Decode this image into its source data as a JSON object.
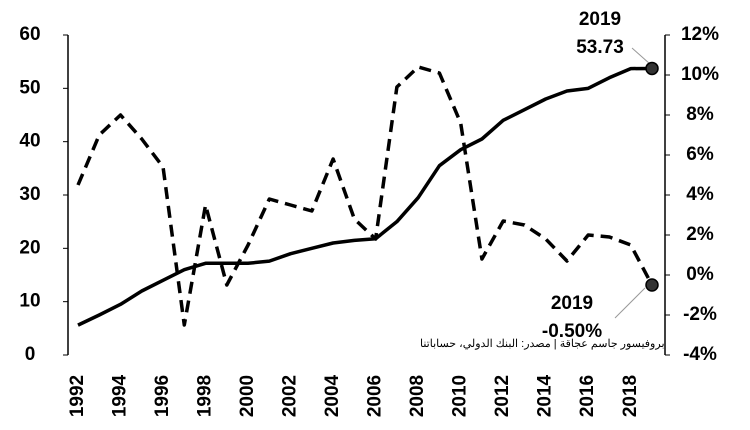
{
  "chart_data": {
    "type": "line",
    "categories": [
      "1992",
      null,
      "1994",
      null,
      "1996",
      null,
      "1998",
      null,
      "2000",
      null,
      "2002",
      null,
      "2004",
      null,
      "2006",
      null,
      "2008",
      null,
      "2010",
      null,
      "2012",
      null,
      "2014",
      null,
      "2016",
      null,
      "2018",
      null
    ],
    "series": [
      {
        "color": "#000000",
        "style": "solid",
        "values": [
          5.6,
          7.5,
          9.5,
          12,
          14,
          16,
          17.2,
          17.2,
          17.2,
          17.6,
          19,
          20,
          21,
          21.5,
          21.8,
          25,
          29.5,
          35.5,
          38.5,
          40.5,
          44,
          46,
          48,
          49.5,
          50,
          52,
          53.7,
          53.73
        ]
      },
      {
        "color": "#000000",
        "style": "dashed",
        "axis": "y2",
        "values": [
          4.5,
          7,
          8,
          6.8,
          5.4,
          -2.5,
          3.5,
          -0.5,
          1.5,
          3.8,
          3.5,
          3.2,
          5.8,
          2.8,
          1.8,
          9.4,
          10.4,
          10.1,
          7.6,
          0.8,
          2.7,
          2.5,
          1.8,
          0.7,
          2,
          1.9,
          1.5,
          -0.5
        ]
      }
    ],
    "ylim": [
      0,
      60
    ],
    "yticks": [
      0,
      10,
      20,
      30,
      40,
      50,
      60
    ],
    "y2lim": [
      -4,
      12
    ],
    "y2ticks": [
      {
        "value": -4,
        "label": "-4%"
      },
      {
        "value": -2,
        "label": "-2%"
      },
      {
        "value": 0,
        "label": "0%"
      },
      {
        "value": 2,
        "label": "2%"
      },
      {
        "value": 4,
        "label": "4%"
      },
      {
        "value": 6,
        "label": "6%"
      },
      {
        "value": 8,
        "label": "8%"
      },
      {
        "value": 10,
        "label": "10%"
      },
      {
        "value": 12,
        "label": "12%"
      }
    ],
    "annotations": [
      "2019",
      "53.73",
      "2019",
      "-0.50%",
      "بروفيسور جاسم عجاقة | مصدر: البنك الدولي، حساباتنا"
    ]
  }
}
